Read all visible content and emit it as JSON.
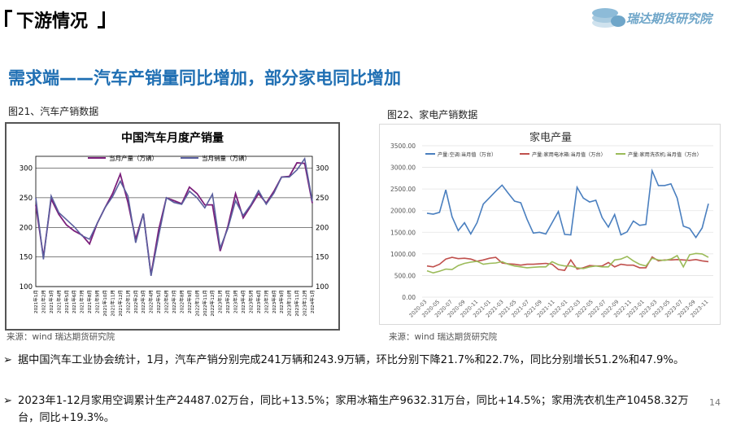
{
  "header": {
    "title": "下游情况",
    "brand": "瑞达期货研究院"
  },
  "headline": "需求端——汽车产销量同比增加，部分家电同比增加",
  "fig1": {
    "caption": "图21、汽车产销数据",
    "source": "来源：wind   瑞达期货研究院"
  },
  "fig2": {
    "caption": "图22、家电产销数据",
    "source": "来源：wind   瑞达期货研究院"
  },
  "bullets": [
    {
      "marker": "➢",
      "text": "据中国汽车工业协会统计，1月，汽车产销分别完成241万辆和243.9万辆，环比分别下降21.7%和22.7%，同比分别增长51.2%和47.9%。"
    },
    {
      "marker": "➢",
      "text": "2023年1-12月家用空调累计生产24487.02万台，同比+13.5%；家用冰箱生产9632.31万台，同比+14.5%；家用洗衣机生产10458.32万台，同比+19.3%。"
    }
  ],
  "page_number": "14",
  "colors": {
    "headline": "#1f6fb3",
    "prod": "#7b1f7b",
    "sales": "#5a5f9e",
    "ac": "#4a7fbf",
    "fridge": "#c0504d",
    "washer": "#9bbb59"
  },
  "chart_data": [
    {
      "type": "line",
      "title": "中国汽车月度产销量",
      "ylim": [
        100,
        320
      ],
      "yticks": [
        100,
        150,
        200,
        250,
        300
      ],
      "grid": true,
      "legend": "top-center",
      "categories": [
        "2021年1月",
        "2021年2月",
        "2021年3月",
        "2021年4月",
        "2021年5月",
        "2021年6月",
        "2021年7月",
        "2021年8月",
        "2021年9月",
        "2021年10月",
        "2021年11月",
        "2021年12月",
        "2022年1月",
        "2022年2月",
        "2022年3月",
        "2022年4月",
        "2022年5月",
        "2022年6月",
        "2022年7月",
        "2022年8月",
        "2022年9月",
        "2022年10月",
        "2022年11月",
        "2022年12月",
        "2023年1月",
        "2023年2月",
        "2023年3月",
        "2023年4月",
        "2023年5月",
        "2023年6月",
        "2023年7月",
        "2023年8月",
        "2023年9月",
        "2023年10月",
        "2023年11月",
        "2023年12月",
        "2024年1月"
      ],
      "series": [
        {
          "name": "当月产量（万辆）",
          "values": [
            238,
            150,
            248,
            222,
            204,
            194,
            187,
            172,
            207,
            233,
            257,
            290,
            242,
            180,
            223,
            120,
            196,
            250,
            245,
            240,
            268,
            257,
            238,
            238,
            160,
            201,
            257,
            216,
            236,
            257,
            241,
            261,
            285,
            286,
            309,
            308,
            241
          ]
        },
        {
          "name": "当月销量（万辆）",
          "values": [
            250,
            146,
            253,
            225,
            213,
            201,
            186,
            180,
            207,
            233,
            252,
            278,
            253,
            174,
            223,
            118,
            186,
            250,
            242,
            239,
            261,
            250,
            233,
            256,
            165,
            198,
            245,
            220,
            238,
            262,
            239,
            258,
            285,
            285,
            297,
            316,
            244
          ]
        }
      ]
    },
    {
      "type": "line",
      "title": "家电产量",
      "ylim": [
        0,
        3500
      ],
      "yticks": [
        "0.00",
        "500.00",
        "1000.00",
        "1500.00",
        "2000.00",
        "2500.00",
        "3000.00",
        "3500.00"
      ],
      "grid": true,
      "legend": "top",
      "x_ticks": [
        "2020-03",
        "2020-05",
        "2020-07",
        "2020-09",
        "2020-11",
        "2021-01",
        "2021-03",
        "2021-05",
        "2021-07",
        "2021-09",
        "2021-11",
        "2022-01",
        "2022-03",
        "2022-05",
        "2022-07",
        "2022-09",
        "2022-11",
        "2023-01",
        "2023-03",
        "2023-05",
        "2023-07",
        "2023-09",
        "2023-11"
      ],
      "series": [
        {
          "name": "产量:空调:当月值（万台）",
          "values": [
            1940,
            1920,
            1960,
            2480,
            1860,
            1540,
            1720,
            1460,
            1720,
            2150,
            2300,
            2450,
            2590,
            2400,
            2220,
            2180,
            1800,
            1480,
            1500,
            1460,
            1720,
            1980,
            1450,
            1440,
            2540,
            2290,
            2200,
            2240,
            1840,
            1620,
            1910,
            1440,
            1510,
            1760,
            1660,
            1680,
            2920,
            2580,
            2580,
            2620,
            2290,
            1640,
            1590,
            1380,
            1600,
            2160
          ]
        },
        {
          "name": "产量:家用电冰箱:当月值（万台）",
          "values": [
            720,
            700,
            760,
            880,
            920,
            890,
            900,
            880,
            830,
            860,
            900,
            920,
            790,
            770,
            760,
            740,
            760,
            760,
            770,
            780,
            760,
            640,
            620,
            860,
            650,
            680,
            730,
            720,
            720,
            800,
            700,
            760,
            740,
            740,
            680,
            680,
            930,
            840,
            860,
            860,
            870,
            860,
            850,
            870,
            840,
            820
          ]
        },
        {
          "name": "产量:家用洗衣机:当月值（万台）",
          "values": [
            610,
            560,
            600,
            650,
            640,
            730,
            780,
            810,
            830,
            760,
            780,
            790,
            820,
            760,
            720,
            700,
            680,
            690,
            700,
            700,
            820,
            750,
            720,
            720,
            680,
            660,
            700,
            720,
            700,
            700,
            860,
            880,
            940,
            840,
            760,
            720,
            900,
            860,
            850,
            880,
            960,
            700,
            980,
            1010,
            1000,
            920
          ]
        }
      ]
    }
  ]
}
